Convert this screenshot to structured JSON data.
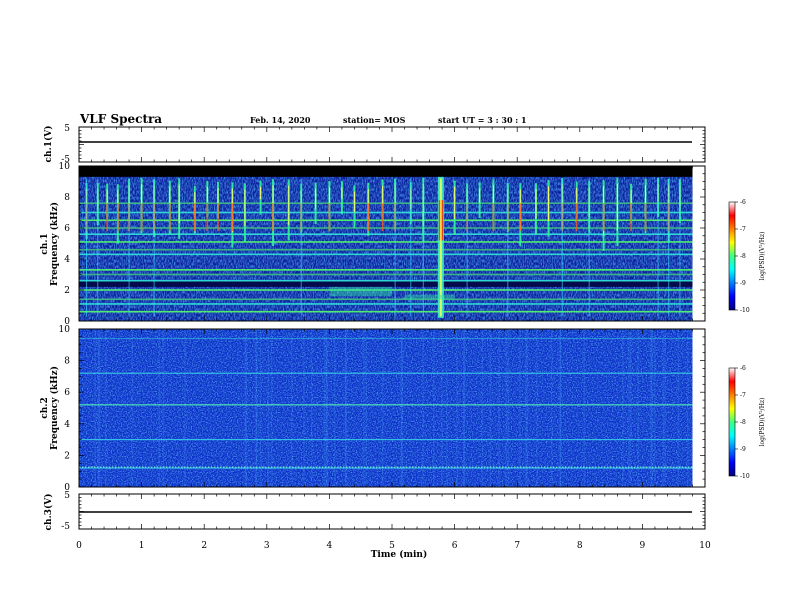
{
  "header": {
    "title": "VLF Spectra",
    "date": "Feb. 14, 2020",
    "station": "station= MOS",
    "start_ut": "start  UT =  3 : 30 : 1"
  },
  "chart_data": [
    {
      "type": "line",
      "panel": "ch1-waveform",
      "ylabel": "ch.1(V)",
      "ylim": [
        -5,
        5
      ],
      "yticks": [
        "5",
        "-5"
      ],
      "xlim": [
        0,
        10
      ],
      "series": [
        {
          "x": [
            0,
            9.8
          ],
          "y": [
            0,
            0
          ]
        }
      ]
    },
    {
      "type": "heatmap",
      "panel": "ch1-spectrogram",
      "ylabel": "ch.1",
      "ylabel2": "Frequency  (kHz)",
      "ylim": [
        0,
        10
      ],
      "xlim": [
        0,
        10
      ],
      "yticks": [
        "0",
        "2",
        "4",
        "6",
        "8",
        "10"
      ],
      "data_xmax": 9.8,
      "colorbar": {
        "label": "log(PSD)(V²/Hz)",
        "range": [
          -10,
          -6
        ],
        "ticks": [
          "-6",
          "-7",
          "-8",
          "-9",
          "-10"
        ]
      },
      "black_above_khz": 9.3,
      "tonal_lines_khz": [
        0.6,
        1.1,
        1.4,
        2.0,
        2.6,
        3.0,
        3.3,
        4.3,
        4.6,
        5.1,
        5.6,
        6.0,
        6.5,
        7.0,
        7.6
      ],
      "bursts_min": [
        0.12,
        0.3,
        0.45,
        0.62,
        0.8,
        1.0,
        1.2,
        1.45,
        1.6,
        1.85,
        2.05,
        2.22,
        2.45,
        2.65,
        2.9,
        3.1,
        3.35,
        3.55,
        3.78,
        4.0,
        4.2,
        4.4,
        4.62,
        4.85,
        5.05,
        5.3,
        5.5,
        5.78,
        6.0,
        6.2,
        6.4,
        6.62,
        6.85,
        7.05,
        7.3,
        7.5,
        7.72,
        7.95,
        8.15,
        8.38,
        8.6,
        8.82,
        9.05,
        9.25,
        9.42,
        9.6
      ],
      "strong_event_min": 5.78
    },
    {
      "type": "heatmap",
      "panel": "ch2-spectrogram",
      "ylabel": "ch.2",
      "ylabel2": "Frequency  (kHz)",
      "ylim": [
        0,
        10
      ],
      "xlim": [
        0,
        10
      ],
      "yticks": [
        "0",
        "2",
        "4",
        "6",
        "8",
        "10"
      ],
      "data_xmax": 9.8,
      "colorbar": {
        "label": "log(PSD)(V²/Hz)",
        "range": [
          -10,
          -6
        ],
        "ticks": [
          "-6",
          "-7",
          "-8",
          "-9",
          "-10"
        ]
      },
      "tonal_lines_khz": [
        1.2,
        3.0,
        5.2,
        7.2,
        9.4
      ]
    },
    {
      "type": "line",
      "panel": "ch3-waveform",
      "ylabel": "ch.3(V)",
      "ylim": [
        -5,
        5
      ],
      "yticks": [
        "5",
        "-5"
      ],
      "xlim": [
        0,
        10
      ],
      "xlabel": "Time  (min)",
      "xticks": [
        "0",
        "1",
        "2",
        "3",
        "4",
        "5",
        "6",
        "7",
        "8",
        "9",
        "10"
      ],
      "series": [
        {
          "x": [
            0,
            9.8
          ],
          "y": [
            0,
            0
          ]
        }
      ]
    }
  ]
}
